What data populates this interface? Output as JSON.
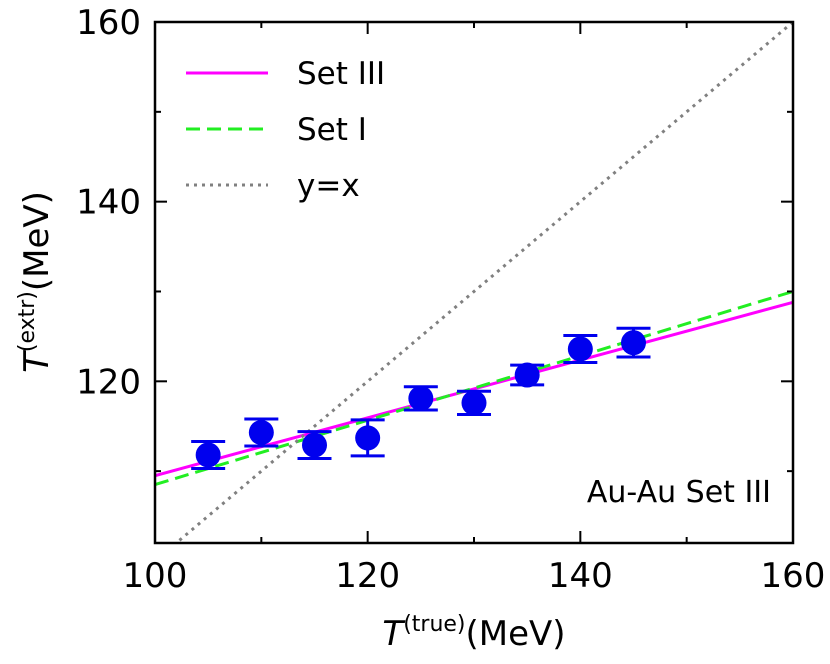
{
  "chart_data": {
    "type": "scatter",
    "title": "",
    "xlabel": {
      "base": "T",
      "sup": "(true)",
      "unit": "(MeV)"
    },
    "ylabel": {
      "base": "T",
      "sup": "(extr)",
      "unit": "(MeV)"
    },
    "xlim": [
      100,
      160
    ],
    "ylim": [
      102,
      160
    ],
    "xticks": [
      100,
      120,
      140,
      160
    ],
    "yticks": [
      120,
      140,
      160
    ],
    "grid": false,
    "legend_position": "top-left",
    "annotation": "Au-Au Set III",
    "points": {
      "color": "#0000ee",
      "x": [
        105,
        110,
        115,
        120,
        125,
        130,
        135,
        140,
        145
      ],
      "y": [
        111.8,
        114.3,
        112.9,
        113.7,
        118.1,
        117.6,
        120.7,
        123.6,
        124.3
      ],
      "err": [
        1.5,
        1.5,
        1.5,
        2.0,
        1.3,
        1.3,
        1.1,
        1.5,
        1.6
      ]
    },
    "series": [
      {
        "name": "Set III",
        "type": "line",
        "style": "solid",
        "color": "#ff00ff",
        "x": [
          100,
          160
        ],
        "y": [
          109.5,
          128.8
        ]
      },
      {
        "name": "Set I",
        "type": "line",
        "style": "dashed",
        "color": "#22ee22",
        "x": [
          100,
          160
        ],
        "y": [
          108.5,
          130.0
        ]
      },
      {
        "name": "y=x",
        "type": "line",
        "style": "dotted",
        "color": "#808080",
        "x": [
          100,
          160
        ],
        "y": [
          100,
          160
        ]
      }
    ]
  }
}
